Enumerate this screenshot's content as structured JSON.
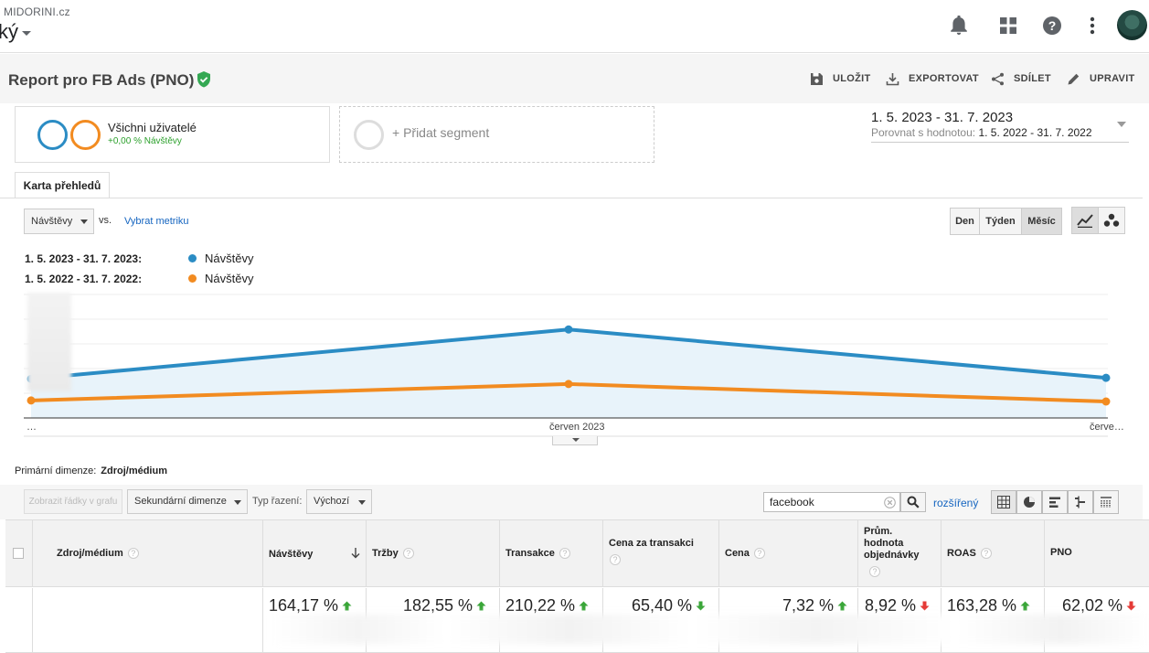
{
  "app": {
    "account": "MIDORINI.cz",
    "view": "ký"
  },
  "icons": {
    "bell": "bell-icon",
    "apps": "apps-grid-icon",
    "help": "help-icon",
    "more": "more-vert-icon"
  },
  "report": {
    "title": "Report pro FB Ads (PNO)",
    "actions": {
      "save": "ULOŽIT",
      "export": "EXPORTOVAT",
      "share": "SDÍLET",
      "edit": "UPRAVIT"
    }
  },
  "segments": {
    "active": {
      "name": "Všichni uživatelé",
      "sub": "+0,00 % Návštěvy"
    },
    "add_label": "+ Přidat segment",
    "colors": {
      "current": "#2b8cc4",
      "previous": "#f28b20"
    }
  },
  "date": {
    "range": "1. 5. 2023 - 31. 7. 2023",
    "compare_label": "Porovnat s hodnotou:",
    "compare_range": "1. 5. 2022 - 31. 7. 2022"
  },
  "tab": {
    "label": "Karta přehledů"
  },
  "controls": {
    "metric": "Návštěvy",
    "vs": "vs.",
    "select_metric": "Vybrat metriku",
    "granularity": [
      "Den",
      "Týden",
      "Měsíc"
    ],
    "granularity_selected": "Měsíc"
  },
  "legend": [
    {
      "range": "1. 5. 2023 - 31. 7. 2023:",
      "label": "Návštěvy",
      "color": "#2b8cc4"
    },
    {
      "range": "1. 5. 2022 - 31. 7. 2022:",
      "label": "Návštěvy",
      "color": "#f28b20"
    }
  ],
  "chart_data": {
    "type": "line",
    "title": "",
    "x": [
      "…",
      "červen 2023",
      "červe…"
    ],
    "series": [
      {
        "name": "1. 5. 2023 - 31. 7. 2023: Návštěvy",
        "values": [
          0.38,
          0.86,
          0.39
        ],
        "color": "#2b8cc4"
      },
      {
        "name": "1. 5. 2022 - 31. 7. 2022: Návštěvy",
        "values": [
          0.17,
          0.33,
          0.16
        ],
        "color": "#f28b20"
      }
    ],
    "ylim": [
      0,
      1.2
    ],
    "grid": true
  },
  "table": {
    "primary_dimension_label": "Primární dimenze:",
    "primary_dimension": "Zdroj/médium",
    "plot_rows": "Zobrazit řádky v grafu",
    "secondary_dimension": "Sekundární dimenze",
    "sort_type_label": "Typ řazení:",
    "sort_type": "Výchozí",
    "search_value": "facebook",
    "advanced": "rozšířený",
    "columns": [
      {
        "key": "source",
        "label": "Zdroj/médium"
      },
      {
        "key": "visits",
        "label": "Návštěvy"
      },
      {
        "key": "revenue",
        "label": "Tržby"
      },
      {
        "key": "transactions",
        "label": "Transakce"
      },
      {
        "key": "cost_per_tx",
        "label": "Cena za transakci"
      },
      {
        "key": "cost",
        "label": "Cena"
      },
      {
        "key": "avg_order",
        "label": "Prům. hodnota objednávky"
      },
      {
        "key": "roas",
        "label": "ROAS"
      },
      {
        "key": "pno",
        "label": "PNO"
      }
    ],
    "summary": [
      {
        "value": "164,17 %",
        "trend": "up",
        "color": "#3aa639"
      },
      {
        "value": "182,55 %",
        "trend": "up",
        "color": "#3aa639"
      },
      {
        "value": "210,22 %",
        "trend": "up",
        "color": "#3aa639"
      },
      {
        "value": "65,40 %",
        "trend": "down",
        "color": "#3aa639"
      },
      {
        "value": "7,32 %",
        "trend": "up",
        "color": "#3aa639"
      },
      {
        "value": "8,92 %",
        "trend": "down",
        "color": "#e53935"
      },
      {
        "value": "163,28 %",
        "trend": "up",
        "color": "#3aa639"
      },
      {
        "value": "62,02 %",
        "trend": "down",
        "color": "#e53935"
      }
    ]
  }
}
